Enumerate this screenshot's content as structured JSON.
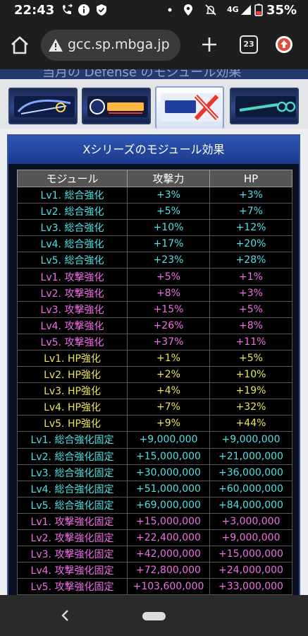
{
  "status_bar": {
    "time": "22:43",
    "network": "4G",
    "battery": "35%"
  },
  "browser": {
    "url": "gcc.sp.mbga.jp",
    "tab_count": "23"
  },
  "page": {
    "top_strip_text": "当月の Defense  のモジュール効果",
    "series_tabs": [
      {
        "name": "gundam-seed",
        "color": "#7ea9ff"
      },
      {
        "name": "mobile-suit-gundam",
        "color": "#ffb640"
      },
      {
        "name": "gundam-x",
        "color": "#e8392d"
      },
      {
        "name": "gundam-00",
        "color": "#4fd6c2"
      }
    ],
    "panel_title": "Xシリーズのモジュール効果",
    "table": {
      "headers": [
        "モジュール",
        "攻撃力",
        "HP"
      ],
      "rows": [
        {
          "module": "Lv1. 総合強化",
          "atk": "+3%",
          "hp": "+3%",
          "color": "cyan"
        },
        {
          "module": "Lv2. 総合強化",
          "atk": "+5%",
          "hp": "+7%",
          "color": "cyan"
        },
        {
          "module": "Lv3. 総合強化",
          "atk": "+10%",
          "hp": "+12%",
          "color": "cyan"
        },
        {
          "module": "Lv4. 総合強化",
          "atk": "+17%",
          "hp": "+20%",
          "color": "cyan"
        },
        {
          "module": "Lv5. 総合強化",
          "atk": "+23%",
          "hp": "+28%",
          "color": "cyan"
        },
        {
          "module": "Lv1. 攻撃強化",
          "atk": "+5%",
          "hp": "+1%",
          "color": "pink"
        },
        {
          "module": "Lv2. 攻撃強化",
          "atk": "+8%",
          "hp": "+3%",
          "color": "pink"
        },
        {
          "module": "Lv3. 攻撃強化",
          "atk": "+15%",
          "hp": "+5%",
          "color": "pink"
        },
        {
          "module": "Lv4. 攻撃強化",
          "atk": "+26%",
          "hp": "+8%",
          "color": "pink"
        },
        {
          "module": "Lv5. 攻撃強化",
          "atk": "+37%",
          "hp": "+11%",
          "color": "pink"
        },
        {
          "module": "Lv1. HP強化",
          "atk": "+1%",
          "hp": "+5%",
          "color": "yellow"
        },
        {
          "module": "Lv2. HP強化",
          "atk": "+2%",
          "hp": "+10%",
          "color": "yellow"
        },
        {
          "module": "Lv3. HP強化",
          "atk": "+4%",
          "hp": "+19%",
          "color": "yellow"
        },
        {
          "module": "Lv4. HP強化",
          "atk": "+7%",
          "hp": "+32%",
          "color": "yellow"
        },
        {
          "module": "Lv5. HP強化",
          "atk": "+9%",
          "hp": "+44%",
          "color": "yellow"
        },
        {
          "module": "Lv1. 総合強化固定",
          "atk": "+9,000,000",
          "hp": "+9,000,000",
          "color": "cyan"
        },
        {
          "module": "Lv2. 総合強化固定",
          "atk": "+15,000,000",
          "hp": "+21,000,000",
          "color": "cyan"
        },
        {
          "module": "Lv3. 総合強化固定",
          "atk": "+30,000,000",
          "hp": "+36,000,000",
          "color": "cyan"
        },
        {
          "module": "Lv4. 総合強化固定",
          "atk": "+51,000,000",
          "hp": "+60,000,000",
          "color": "cyan"
        },
        {
          "module": "Lv5. 総合強化固定",
          "atk": "+69,000,000",
          "hp": "+84,000,000",
          "color": "cyan"
        },
        {
          "module": "Lv1. 攻撃強化固定",
          "atk": "+15,000,000",
          "hp": "+3,000,000",
          "color": "pink"
        },
        {
          "module": "Lv2. 攻撃強化固定",
          "atk": "+22,400,000",
          "hp": "+9,000,000",
          "color": "pink"
        },
        {
          "module": "Lv3. 攻撃強化固定",
          "atk": "+42,000,000",
          "hp": "+15,000,000",
          "color": "pink"
        },
        {
          "module": "Lv4. 攻撃強化固定",
          "atk": "+72,800,000",
          "hp": "+24,000,000",
          "color": "pink"
        },
        {
          "module": "Lv5. 攻撃強化固定",
          "atk": "+103,600,000",
          "hp": "+33,000,000",
          "color": "pink"
        }
      ]
    }
  },
  "icons": {
    "status": [
      "call-forward-icon",
      "info-icon",
      "shield-icon",
      "dot-icon",
      "location-icon",
      "mute-bell-icon",
      "signal-icon",
      "battery-icon"
    ],
    "toolbar": [
      "home-icon",
      "warning-icon",
      "plus-icon",
      "tabs-icon",
      "update-icon"
    ],
    "nav": [
      "back-icon",
      "home-pill-icon"
    ]
  }
}
